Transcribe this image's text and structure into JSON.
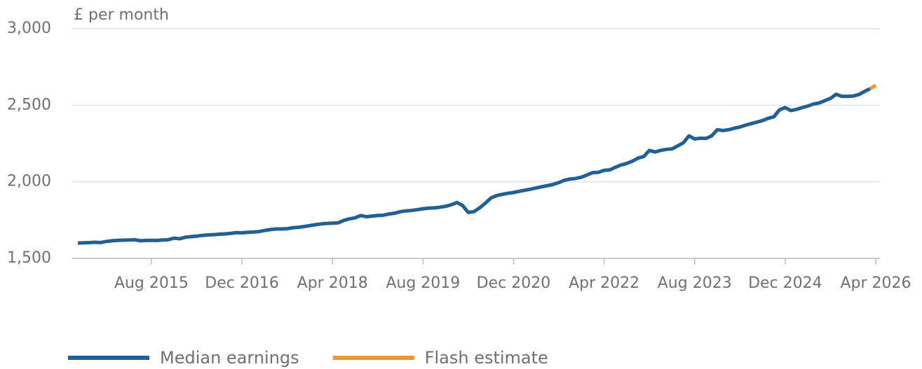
{
  "chart_data": {
    "type": "line",
    "y_label": "£ per month",
    "categories": [
      null,
      null,
      null,
      null,
      null,
      null,
      null,
      null,
      null,
      null,
      null,
      null,
      null,
      "Aug 2015",
      null,
      null,
      null,
      null,
      null,
      null,
      null,
      null,
      null,
      null,
      null,
      null,
      null,
      null,
      null,
      "Dec 2016",
      null,
      null,
      null,
      null,
      null,
      null,
      null,
      null,
      null,
      null,
      null,
      null,
      null,
      null,
      null,
      "Apr 2018",
      null,
      null,
      null,
      null,
      null,
      null,
      null,
      null,
      null,
      null,
      null,
      null,
      null,
      null,
      null,
      "Aug 2019",
      null,
      null,
      null,
      null,
      null,
      null,
      null,
      null,
      null,
      null,
      null,
      null,
      null,
      null,
      null,
      "Dec 2020",
      null,
      null,
      null,
      null,
      null,
      null,
      null,
      null,
      null,
      null,
      null,
      null,
      null,
      null,
      null,
      "Apr 2022",
      null,
      null,
      null,
      null,
      null,
      null,
      null,
      null,
      null,
      null,
      null,
      null,
      null,
      null,
      null,
      "Aug 2023",
      null,
      null,
      null,
      null,
      null,
      null,
      null,
      null,
      null,
      null,
      null,
      null,
      null,
      null,
      null,
      "Dec 2024",
      null,
      null,
      null,
      null,
      null,
      null,
      null,
      null,
      null,
      null,
      null,
      null,
      null,
      null,
      null,
      "Apr 2026"
    ],
    "series": [
      {
        "name": "Median earnings",
        "color": "#206095",
        "values": [
          1600,
          1602,
          1603,
          1605,
          1603,
          1610,
          1615,
          1618,
          1619,
          1620,
          1622,
          1615,
          1617,
          1618,
          1617,
          1620,
          1622,
          1632,
          1628,
          1638,
          1642,
          1645,
          1650,
          1653,
          1655,
          1658,
          1660,
          1663,
          1668,
          1667,
          1670,
          1672,
          1675,
          1682,
          1688,
          1692,
          1692,
          1694,
          1700,
          1703,
          1708,
          1714,
          1720,
          1725,
          1728,
          1730,
          1732,
          1748,
          1758,
          1765,
          1780,
          1772,
          1776,
          1780,
          1782,
          1790,
          1795,
          1805,
          1810,
          1813,
          1818,
          1824,
          1828,
          1830,
          1834,
          1840,
          1850,
          1865,
          1845,
          1800,
          1805,
          1830,
          1860,
          1895,
          1910,
          1918,
          1925,
          1930,
          1938,
          1945,
          1952,
          1960,
          1968,
          1975,
          1983,
          1995,
          2010,
          2018,
          2022,
          2030,
          2045,
          2060,
          2062,
          2075,
          2078,
          2095,
          2110,
          2120,
          2135,
          2155,
          2165,
          2205,
          2195,
          2205,
          2212,
          2215,
          2235,
          2255,
          2300,
          2280,
          2285,
          2283,
          2300,
          2340,
          2335,
          2340,
          2350,
          2358,
          2370,
          2380,
          2390,
          2400,
          2415,
          2425,
          2470,
          2485,
          2465,
          2473,
          2485,
          2495,
          2508,
          2515,
          2530,
          2545,
          2572,
          2558,
          2558,
          2560,
          2570,
          2590,
          2608,
          null
        ]
      },
      {
        "name": "Flash estimate",
        "color": "#f39431",
        "values": [
          null,
          null,
          null,
          null,
          null,
          null,
          null,
          null,
          null,
          null,
          null,
          null,
          null,
          null,
          null,
          null,
          null,
          null,
          null,
          null,
          null,
          null,
          null,
          null,
          null,
          null,
          null,
          null,
          null,
          null,
          null,
          null,
          null,
          null,
          null,
          null,
          null,
          null,
          null,
          null,
          null,
          null,
          null,
          null,
          null,
          null,
          null,
          null,
          null,
          null,
          null,
          null,
          null,
          null,
          null,
          null,
          null,
          null,
          null,
          null,
          null,
          null,
          null,
          null,
          null,
          null,
          null,
          null,
          null,
          null,
          null,
          null,
          null,
          null,
          null,
          null,
          null,
          null,
          null,
          null,
          null,
          null,
          null,
          null,
          null,
          null,
          null,
          null,
          null,
          null,
          null,
          null,
          null,
          null,
          null,
          null,
          null,
          null,
          null,
          null,
          null,
          null,
          null,
          null,
          null,
          null,
          null,
          null,
          null,
          null,
          null,
          null,
          null,
          null,
          null,
          null,
          null,
          null,
          null,
          null,
          null,
          null,
          null,
          null,
          null,
          null,
          null,
          null,
          null,
          null,
          null,
          null,
          null,
          null,
          null,
          null,
          null,
          null,
          null,
          null,
          2608,
          2630
        ]
      }
    ],
    "ylim": [
      1500,
      3000
    ],
    "yticks": [
      {
        "value": 1500,
        "label": "1,500"
      },
      {
        "value": 2000,
        "label": "2,000"
      },
      {
        "value": 2500,
        "label": "2,500"
      },
      {
        "value": 3000,
        "label": "3,000"
      }
    ],
    "grid": true,
    "legend": "bottom"
  }
}
